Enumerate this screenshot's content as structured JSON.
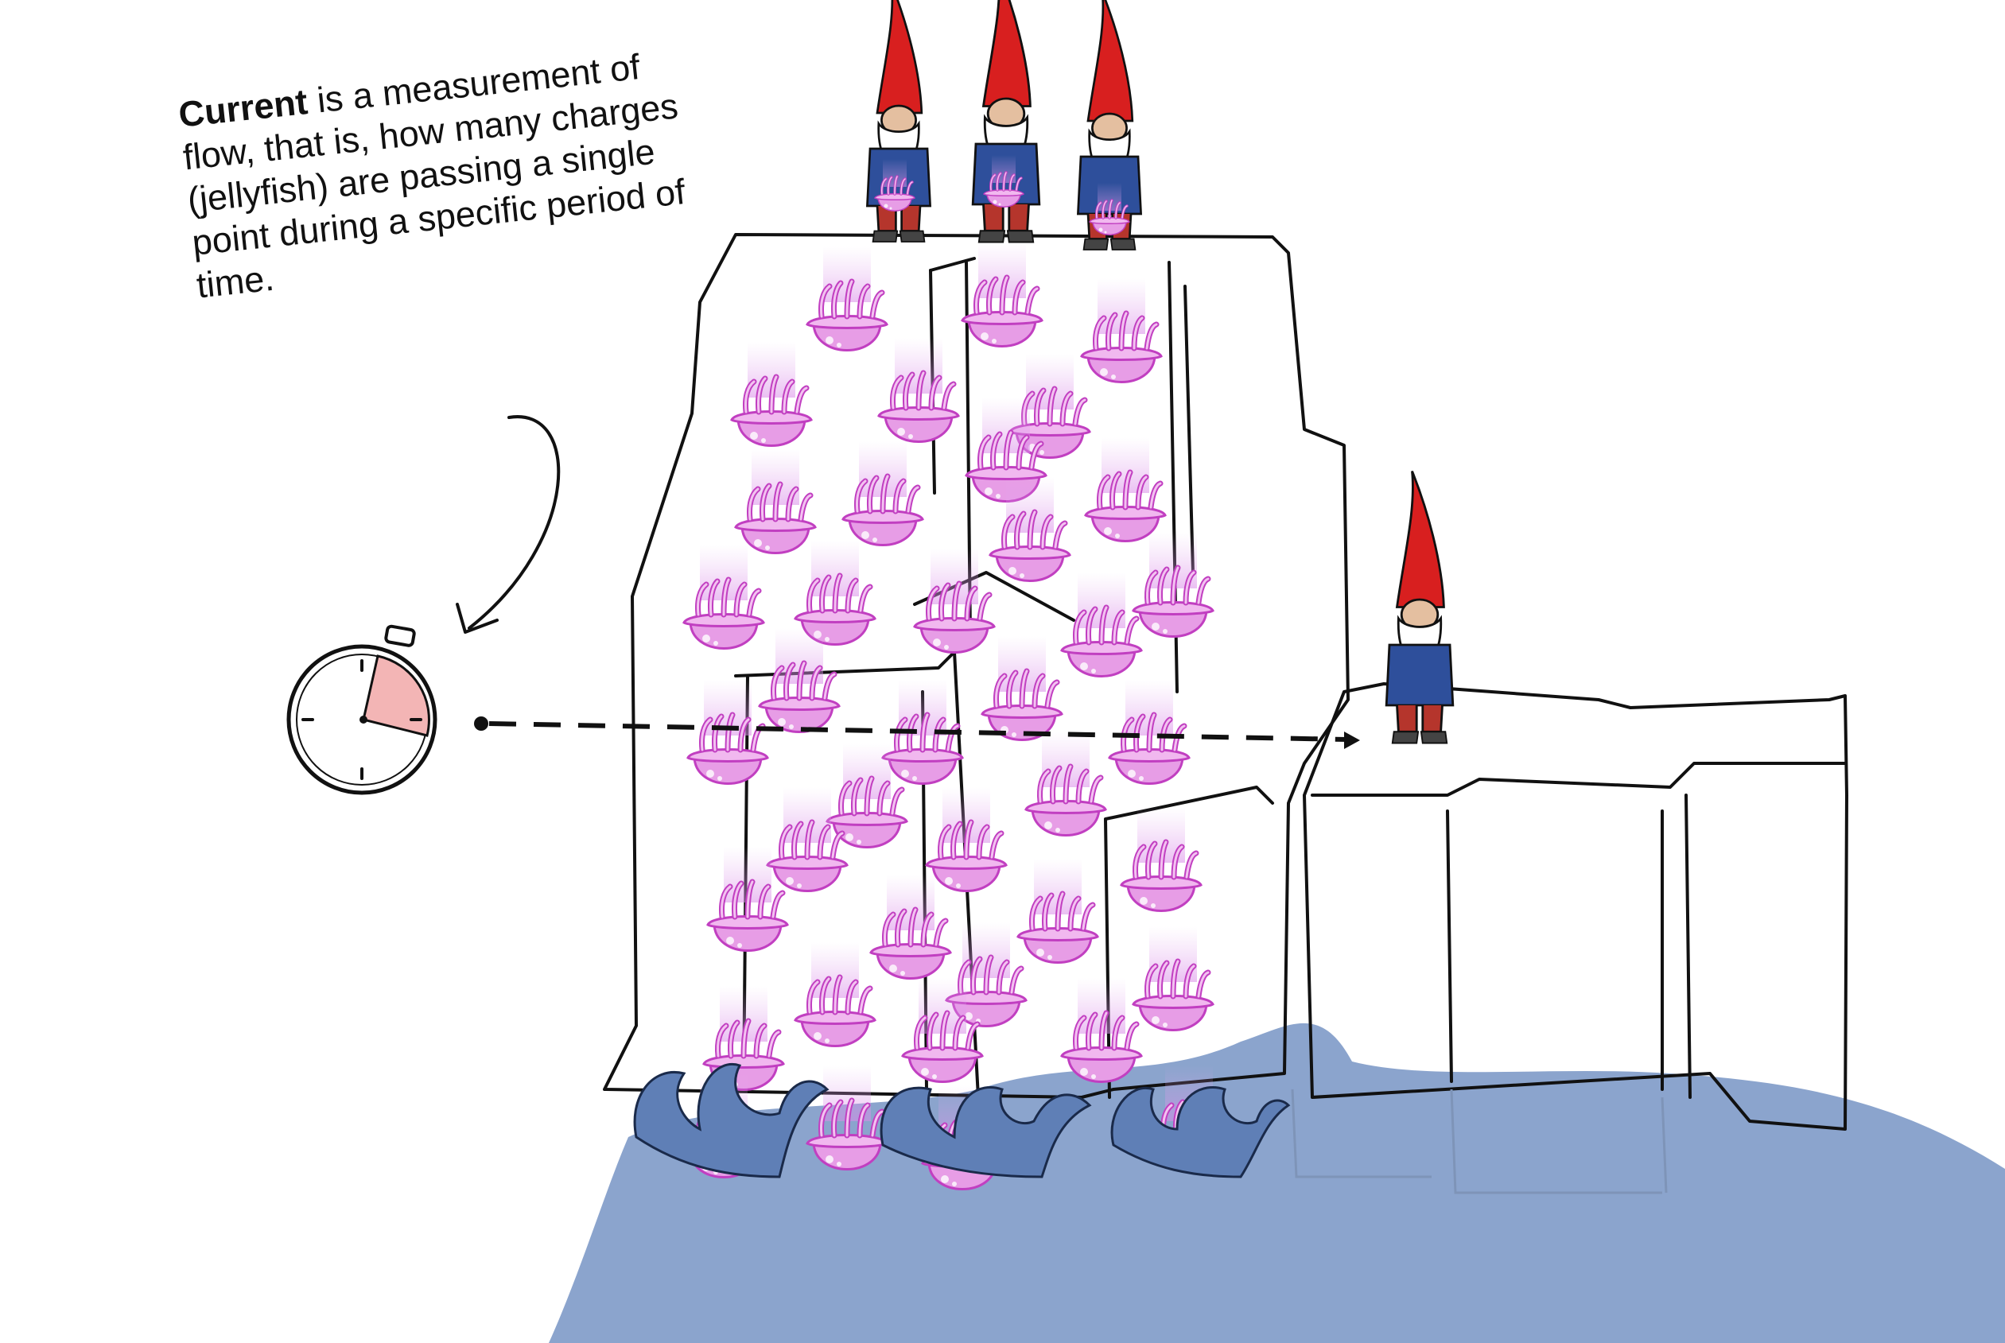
{
  "caption": {
    "term": "Current",
    "rest": " is a measurement of flow, that is, how many charges (jellyfish) are passing a single point during a specific period of time."
  },
  "icons": {
    "timer": "stopwatch-icon",
    "charge": "jellyfish-icon",
    "character": "gnome-icon"
  },
  "colors": {
    "water": "#8ba4cd",
    "jellyfish": "#e79de6",
    "jellyfish_outline": "#c13fc1",
    "gnome_hat": "#d81f1f",
    "gnome_coat": "#2e4f9b",
    "timer_wedge": "#f3b5b5"
  }
}
